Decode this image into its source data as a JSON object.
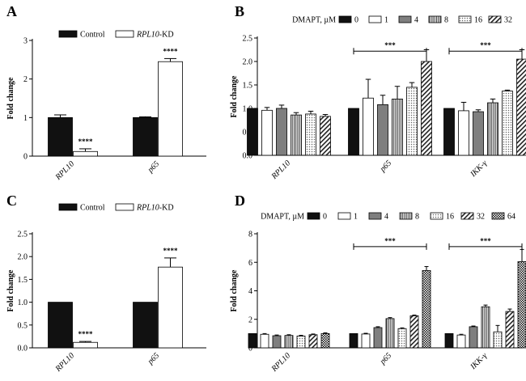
{
  "chart_data": [
    {
      "id": "A",
      "panel_label": "A",
      "type": "bar",
      "title": "",
      "xlabel": "",
      "ylabel": "Fold change",
      "ylim": [
        0,
        3
      ],
      "yticks": [
        0,
        1,
        2,
        3
      ],
      "ytick_labels": [
        "0",
        "1",
        "2",
        "3"
      ],
      "grid": false,
      "legend_position": "top",
      "categories": [
        "RPL10",
        "p65"
      ],
      "series": [
        {
          "name": "Control",
          "italic_part": "",
          "pattern": "solid",
          "values": [
            1.0,
            1.0
          ],
          "errors": [
            0.07,
            0.02
          ]
        },
        {
          "name": "-KD",
          "italic_part": "RPL10",
          "pattern": "white",
          "values": [
            0.12,
            2.45
          ],
          "errors": [
            0.07,
            0.08
          ]
        }
      ],
      "annotations": [
        {
          "text": "****",
          "category": 0,
          "series": 1
        },
        {
          "text": "****",
          "category": 1,
          "series": 1
        }
      ],
      "brackets": []
    },
    {
      "id": "B",
      "panel_label": "B",
      "type": "bar",
      "title": "",
      "xlabel": "",
      "ylabel": "Fold change",
      "ylim": [
        0,
        2.5
      ],
      "yticks": [
        0,
        0.5,
        1,
        1.5,
        2,
        2.5
      ],
      "ytick_labels": [
        "0.0",
        "0.5",
        "1.0",
        "1.5",
        "2.0",
        "2.5"
      ],
      "grid": false,
      "legend_position": "top",
      "legend_title": "DMAPT, µM",
      "categories": [
        "RPL10",
        "p65",
        "IKK-γ"
      ],
      "series": [
        {
          "name": "0",
          "pattern": "solid",
          "values": [
            1.0,
            1.0,
            1.0
          ],
          "errors": [
            0,
            0,
            0
          ]
        },
        {
          "name": "1",
          "pattern": "white",
          "values": [
            0.96,
            1.22,
            0.95
          ],
          "errors": [
            0.06,
            0.4,
            0.18
          ]
        },
        {
          "name": "4",
          "pattern": "gray",
          "values": [
            1.0,
            1.08,
            0.93
          ],
          "errors": [
            0.07,
            0.2,
            0.04
          ]
        },
        {
          "name": "8",
          "pattern": "vertical",
          "values": [
            0.86,
            1.2,
            1.12
          ],
          "errors": [
            0.05,
            0.27,
            0.08
          ]
        },
        {
          "name": "16",
          "pattern": "dots",
          "values": [
            0.88,
            1.45,
            1.37
          ],
          "errors": [
            0.06,
            0.1,
            0.02
          ]
        },
        {
          "name": "32",
          "pattern": "diagonal",
          "values": [
            0.83,
            2.0,
            2.05
          ],
          "errors": [
            0.04,
            0.25,
            0.2
          ]
        }
      ],
      "annotations": [],
      "brackets": [
        {
          "category": 1,
          "value": 2.22,
          "text": "***"
        },
        {
          "category": 2,
          "value": 2.22,
          "text": "***"
        }
      ]
    },
    {
      "id": "C",
      "panel_label": "C",
      "type": "bar",
      "title": "",
      "xlabel": "",
      "ylabel": "Fold change",
      "ylim": [
        0,
        2.5
      ],
      "yticks": [
        0,
        0.5,
        1,
        1.5,
        2,
        2.5
      ],
      "ytick_labels": [
        "0.0",
        "0.5",
        "1.0",
        "1.5",
        "2.0",
        "2.5"
      ],
      "grid": false,
      "legend_position": "top",
      "categories": [
        "RPL10",
        "p65"
      ],
      "series": [
        {
          "name": "Control",
          "italic_part": "",
          "pattern": "solid",
          "values": [
            1.0,
            1.0
          ],
          "errors": [
            0,
            0
          ]
        },
        {
          "name": "-KD",
          "italic_part": "RPL10",
          "pattern": "white",
          "values": [
            0.12,
            1.77
          ],
          "errors": [
            0.02,
            0.2
          ]
        }
      ],
      "annotations": [
        {
          "text": "****",
          "category": 0,
          "series": 1
        },
        {
          "text": "****",
          "category": 1,
          "series": 1
        }
      ],
      "brackets": []
    },
    {
      "id": "D",
      "panel_label": "D",
      "type": "bar",
      "title": "",
      "xlabel": "",
      "ylabel": "Fold change",
      "ylim": [
        0,
        8
      ],
      "yticks": [
        0,
        2,
        4,
        6,
        8
      ],
      "ytick_labels": [
        "0",
        "2",
        "4",
        "6",
        "8"
      ],
      "grid": false,
      "legend_position": "top",
      "legend_title": "DMAPT, µM",
      "categories": [
        "RPL10",
        "p65",
        "IKK-γ"
      ],
      "series": [
        {
          "name": "0",
          "pattern": "solid",
          "values": [
            1.0,
            1.0,
            1.0
          ],
          "errors": [
            0,
            0,
            0
          ]
        },
        {
          "name": "1",
          "pattern": "white",
          "values": [
            0.95,
            0.97,
            0.9
          ],
          "errors": [
            0.05,
            0.05,
            0.05
          ]
        },
        {
          "name": "4",
          "pattern": "gray",
          "values": [
            0.85,
            1.42,
            1.48
          ],
          "errors": [
            0.05,
            0.06,
            0.05
          ]
        },
        {
          "name": "8",
          "pattern": "vertical",
          "values": [
            0.87,
            2.05,
            2.88
          ],
          "errors": [
            0.05,
            0.07,
            0.12
          ]
        },
        {
          "name": "16",
          "pattern": "dots",
          "values": [
            0.83,
            1.35,
            1.12
          ],
          "errors": [
            0.05,
            0.05,
            0.45
          ]
        },
        {
          "name": "32",
          "pattern": "diagonal",
          "values": [
            0.92,
            2.25,
            2.55
          ],
          "errors": [
            0.05,
            0.05,
            0.17
          ]
        },
        {
          "name": "64",
          "pattern": "checker",
          "values": [
            1.0,
            5.42,
            6.05
          ],
          "errors": [
            0.05,
            0.28,
            0.85
          ]
        }
      ],
      "annotations": [],
      "brackets": [
        {
          "category": 1,
          "value": 7.1,
          "text": "***"
        },
        {
          "category": 2,
          "value": 7.1,
          "text": "***"
        }
      ]
    }
  ]
}
